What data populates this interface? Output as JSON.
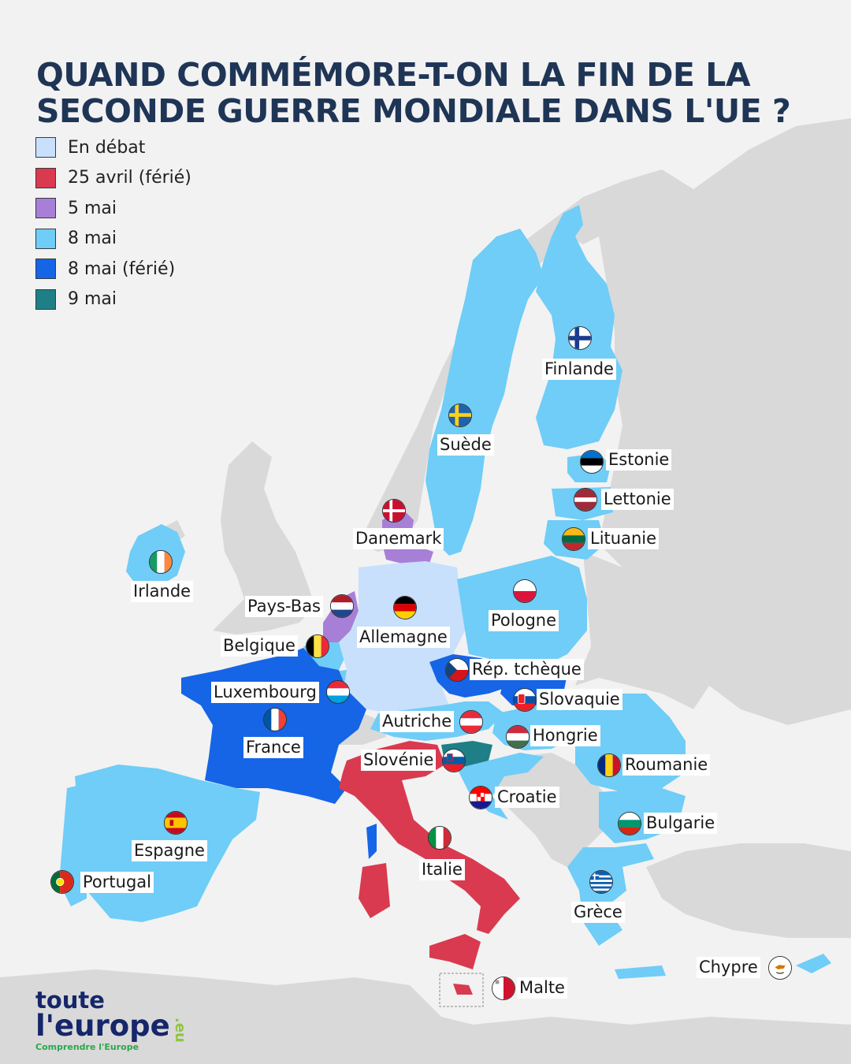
{
  "title": {
    "line1": "QUAND COMMÉMORE-T-ON LA FIN DE LA",
    "line2": "SECONDE GUERRE MONDIALE DANS L'UE ?"
  },
  "colors": {
    "en_debat": "#c8e0fc",
    "avril_25": "#d93a4f",
    "mai_5": "#a87fd6",
    "mai_8": "#6fcdf7",
    "mai_8_ferie": "#1565e6",
    "mai_9": "#1e7f87",
    "land": "#d9d9d9",
    "sea": "#f2f2f2"
  },
  "legend": [
    {
      "label": "En débat",
      "color": "#c8e0fc"
    },
    {
      "label": "25 avril (férié)",
      "color": "#d93a4f"
    },
    {
      "label": "5 mai",
      "color": "#a87fd6"
    },
    {
      "label": "8 mai",
      "color": "#6fcdf7"
    },
    {
      "label": "8 mai (férié)",
      "color": "#1565e6"
    },
    {
      "label": "9 mai",
      "color": "#1e7f87"
    }
  ],
  "countries": {
    "finlande": "Finlande",
    "suede": "Suède",
    "estonie": "Estonie",
    "lettonie": "Lettonie",
    "lituanie": "Lituanie",
    "danemark": "Danemark",
    "irlande": "Irlande",
    "pays_bas": "Pays-Bas",
    "allemagne": "Allemagne",
    "pologne": "Pologne",
    "belgique": "Belgique",
    "rep_tcheque": "Rép. tchèque",
    "luxembourg": "Luxembourg",
    "slovaquie": "Slovaquie",
    "autriche": "Autriche",
    "hongrie": "Hongrie",
    "france": "France",
    "slovenie": "Slovénie",
    "roumanie": "Roumanie",
    "croatie": "Croatie",
    "bulgarie": "Bulgarie",
    "espagne": "Espagne",
    "italie": "Italie",
    "portugal": "Portugal",
    "grece": "Grèce",
    "chypre": "Chypre",
    "malte": "Malte"
  },
  "logo": {
    "line1": "toute",
    "line2": "l'europe",
    "suffix": ".eu",
    "tagline": "Comprendre l'Europe"
  }
}
